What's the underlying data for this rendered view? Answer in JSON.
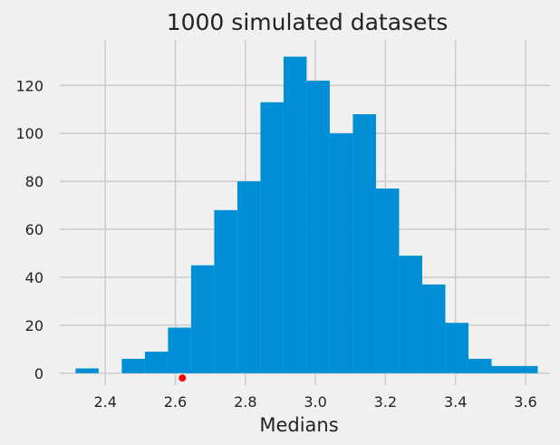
{
  "chart_data": {
    "type": "bar",
    "title": "1000 simulated datasets",
    "xlabel": "Medians",
    "ylabel": "",
    "xlim": [
      2.27,
      3.67
    ],
    "ylim": [
      -5,
      139
    ],
    "grid": true,
    "xticks": [
      2.4,
      2.6,
      2.8,
      3.0,
      3.2,
      3.4,
      3.6
    ],
    "xtick_labels": [
      "2.4",
      "2.6",
      "2.8",
      "3.0",
      "3.2",
      "3.4",
      "3.6"
    ],
    "yticks": [
      0,
      20,
      40,
      60,
      80,
      100,
      120
    ],
    "ytick_labels": [
      "0",
      "20",
      "40",
      "60",
      "80",
      "100",
      "120"
    ],
    "bins": [
      {
        "x0": 2.315,
        "x1": 2.381,
        "count": 2
      },
      {
        "x0": 2.381,
        "x1": 2.447,
        "count": 0
      },
      {
        "x0": 2.447,
        "x1": 2.513,
        "count": 6
      },
      {
        "x0": 2.513,
        "x1": 2.579,
        "count": 9
      },
      {
        "x0": 2.579,
        "x1": 2.645,
        "count": 19
      },
      {
        "x0": 2.645,
        "x1": 2.711,
        "count": 45
      },
      {
        "x0": 2.711,
        "x1": 2.777,
        "count": 68
      },
      {
        "x0": 2.777,
        "x1": 2.843,
        "count": 80
      },
      {
        "x0": 2.843,
        "x1": 2.909,
        "count": 113
      },
      {
        "x0": 2.909,
        "x1": 2.975,
        "count": 132
      },
      {
        "x0": 2.975,
        "x1": 3.041,
        "count": 122
      },
      {
        "x0": 3.041,
        "x1": 3.107,
        "count": 100
      },
      {
        "x0": 3.107,
        "x1": 3.173,
        "count": 108
      },
      {
        "x0": 3.173,
        "x1": 3.239,
        "count": 77
      },
      {
        "x0": 3.239,
        "x1": 3.305,
        "count": 49
      },
      {
        "x0": 3.305,
        "x1": 3.371,
        "count": 37
      },
      {
        "x0": 3.371,
        "x1": 3.437,
        "count": 21
      },
      {
        "x0": 3.437,
        "x1": 3.503,
        "count": 6
      },
      {
        "x0": 3.503,
        "x1": 3.569,
        "count": 3
      },
      {
        "x0": 3.569,
        "x1": 3.635,
        "count": 3
      }
    ],
    "bar_color": "#008fd5",
    "annotations": [
      {
        "type": "point",
        "x": 2.62,
        "y": -2,
        "color": "#ff0000"
      }
    ]
  }
}
